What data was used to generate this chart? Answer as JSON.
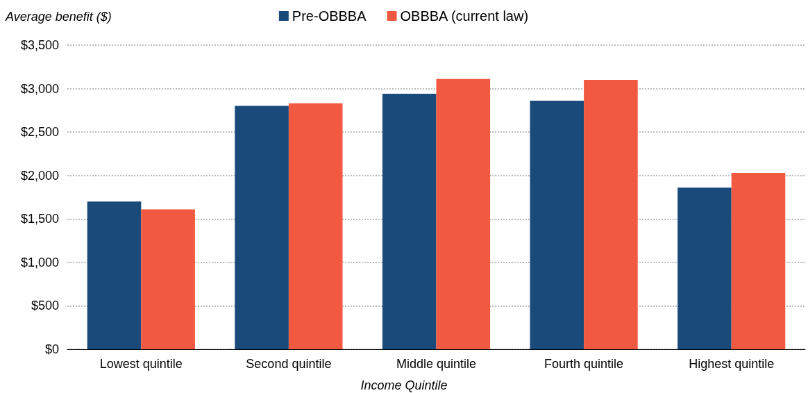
{
  "chart_data": {
    "type": "bar",
    "ylabel": "Average benefit ($)",
    "xlabel": "Income Quintile",
    "categories": [
      "Lowest quintile",
      "Second quintile",
      "Middle quintile",
      "Fourth quintile",
      "Highest quintile"
    ],
    "series": [
      {
        "name": "Pre-OBBBA",
        "color": "#1a4a7a",
        "values": [
          1700,
          2800,
          2940,
          2860,
          1860
        ]
      },
      {
        "name": "OBBBA (current law)",
        "color": "#f15a40",
        "values": [
          1610,
          2830,
          3110,
          3100,
          2030
        ]
      }
    ],
    "ylim": [
      0,
      3500
    ],
    "yticks": [
      {
        "value": 0,
        "label": "$0"
      },
      {
        "value": 500,
        "label": "$500"
      },
      {
        "value": 1000,
        "label": "$1,000"
      },
      {
        "value": 1500,
        "label": "$1,500"
      },
      {
        "value": 2000,
        "label": "$2,000"
      },
      {
        "value": 2500,
        "label": "$2,500"
      },
      {
        "value": 3000,
        "label": "$3,000"
      },
      {
        "value": 3500,
        "label": "$3,500"
      }
    ],
    "grid": "y",
    "legend": "top"
  }
}
